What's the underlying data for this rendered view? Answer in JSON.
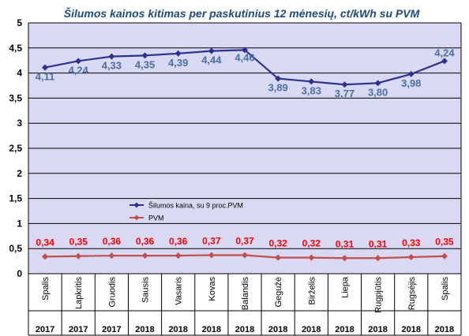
{
  "chart_data": {
    "type": "line",
    "title": "Šilumos kainos kitimas per paskutinius 12 mėnesių, ct/kWh su PVM",
    "xlabel": "",
    "ylabel": "",
    "ylim": [
      0,
      5
    ],
    "yticks": [
      "0",
      "0,5",
      "1",
      "1,5",
      "2",
      "2,5",
      "3",
      "3,5",
      "4",
      "4,5",
      "5"
    ],
    "grid": true,
    "legend_position": "center-left",
    "categories": [
      "Spalis",
      "Lapkritis",
      "Gruodis",
      "Sausis",
      "Vasaris",
      "Kovas",
      "Balandis",
      "Gegužė",
      "Birželis",
      "Liepa",
      "Rugpjūtis",
      "Rugsėjis",
      "Spalis"
    ],
    "years": [
      "2017",
      "2017",
      "2017",
      "2018",
      "2018",
      "2018",
      "2018",
      "2018",
      "2018",
      "2018",
      "2018",
      "2018",
      "2018"
    ],
    "series": [
      {
        "name": "Šilumos kaina, su 9 proc.PVM",
        "color": "#2e3192",
        "label_color": "#4a6fa5",
        "values": [
          4.11,
          4.24,
          4.33,
          4.35,
          4.39,
          4.44,
          4.46,
          3.89,
          3.83,
          3.77,
          3.8,
          3.98,
          4.24
        ],
        "labels": [
          "4,11",
          "4,24",
          "4,33",
          "4,35",
          "4,39",
          "4,44",
          "4,46",
          "3,89",
          "3,83",
          "3,77",
          "3,80",
          "3,98",
          "4,24"
        ]
      },
      {
        "name": "PVM",
        "color": "#c0504d",
        "label_color": "#ff0000",
        "values": [
          0.34,
          0.35,
          0.36,
          0.36,
          0.36,
          0.37,
          0.37,
          0.32,
          0.32,
          0.31,
          0.31,
          0.33,
          0.35
        ],
        "labels": [
          "0,34",
          "0,35",
          "0,36",
          "0,36",
          "0,36",
          "0,37",
          "0,37",
          "0,32",
          "0,32",
          "0,31",
          "0,31",
          "0,33",
          "0,35"
        ]
      }
    ],
    "colors": {
      "title": "#1f497d",
      "plot_background": "#d9d9f3",
      "axis": "#000000",
      "grid": "#000000"
    }
  }
}
